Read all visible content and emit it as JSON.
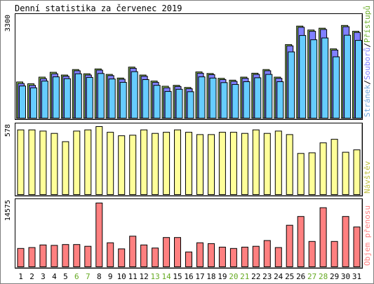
{
  "chart_data": {
    "title": "Denní statistika za červenec 2019",
    "days": [
      "1",
      "2",
      "3",
      "4",
      "5",
      "6",
      "7",
      "8",
      "9",
      "10",
      "11",
      "12",
      "13",
      "14",
      "15",
      "16",
      "17",
      "18",
      "19",
      "20",
      "21",
      "22",
      "23",
      "24",
      "25",
      "26",
      "27",
      "28",
      "29",
      "30",
      "31"
    ],
    "weekend_days": [
      "6",
      "7",
      "13",
      "14",
      "20",
      "21",
      "27",
      "28"
    ],
    "panels": [
      {
        "type": "bar",
        "ymax_label": "3300",
        "ymax": 3300,
        "legend": [
          "Stránek",
          "Souborů",
          "Přístupů"
        ],
        "legend_colors": [
          "#6fa8dc",
          "#8080ff",
          "#70b030"
        ],
        "series": [
          {
            "name": "Přístupů",
            "color": "#99cc66",
            "values": [
              1190,
              1130,
              1350,
              1510,
              1420,
              1600,
              1460,
              1620,
              1440,
              1320,
              1680,
              1420,
              1220,
              1050,
              1080,
              1010,
              1520,
              1470,
              1310,
              1250,
              1350,
              1480,
              1600,
              1350,
              2420,
              3030,
              2900,
              2960,
              2280,
              3050,
              2860
            ]
          },
          {
            "name": "Souborů",
            "color": "#8080ff",
            "values": [
              1140,
              1080,
              1300,
              1460,
              1380,
              1560,
              1420,
              1580,
              1400,
              1280,
              1640,
              1380,
              1180,
              1000,
              1040,
              970,
              1480,
              1430,
              1270,
              1210,
              1310,
              1440,
              1560,
              1310,
              2380,
              2990,
              2860,
              2920,
              2240,
              3010,
              2820
            ]
          },
          {
            "name": "Stránek",
            "color": "#66ccff",
            "values": [
              1060,
              1000,
              1220,
              1360,
              1300,
              1460,
              1340,
              1470,
              1290,
              1180,
              1530,
              1270,
              1080,
              880,
              950,
              870,
              1360,
              1320,
              1170,
              1110,
              1200,
              1330,
              1440,
              1200,
              2180,
              2720,
              2580,
              2640,
              2020,
              2730,
              2560
            ]
          }
        ]
      },
      {
        "type": "bar",
        "ymax_label": "578",
        "ymax": 578,
        "legend": [
          "Návštěv"
        ],
        "legend_colors": [
          "#c0c040"
        ],
        "series": [
          {
            "name": "Návštěv",
            "color": "#ffff99",
            "values": [
              550,
              550,
              540,
              520,
              450,
              540,
              550,
              578,
              530,
              500,
              505,
              550,
              520,
              530,
              550,
              530,
              510,
              510,
              530,
              530,
              520,
              550,
              520,
              540,
              510,
              350,
              355,
              440,
              470,
              360,
              380
            ]
          }
        ]
      },
      {
        "type": "bar",
        "ymax_label": "14575",
        "ymax": 14575,
        "legend": [
          "Objem přenosu"
        ],
        "legend_colors": [
          "#ff8080"
        ],
        "series": [
          {
            "name": "Objem přenosu",
            "color": "#ff8080",
            "values": [
              4200,
              4400,
              5000,
              4900,
              5100,
              5100,
              4700,
              14575,
              5500,
              4100,
              7000,
              5000,
              4300,
              6700,
              6700,
              3400,
              5500,
              5300,
              4500,
              4200,
              4500,
              4700,
              6000,
              4400,
              9500,
              11500,
              5800,
              13500,
              5800,
              11500,
              9100
            ]
          }
        ]
      }
    ]
  }
}
